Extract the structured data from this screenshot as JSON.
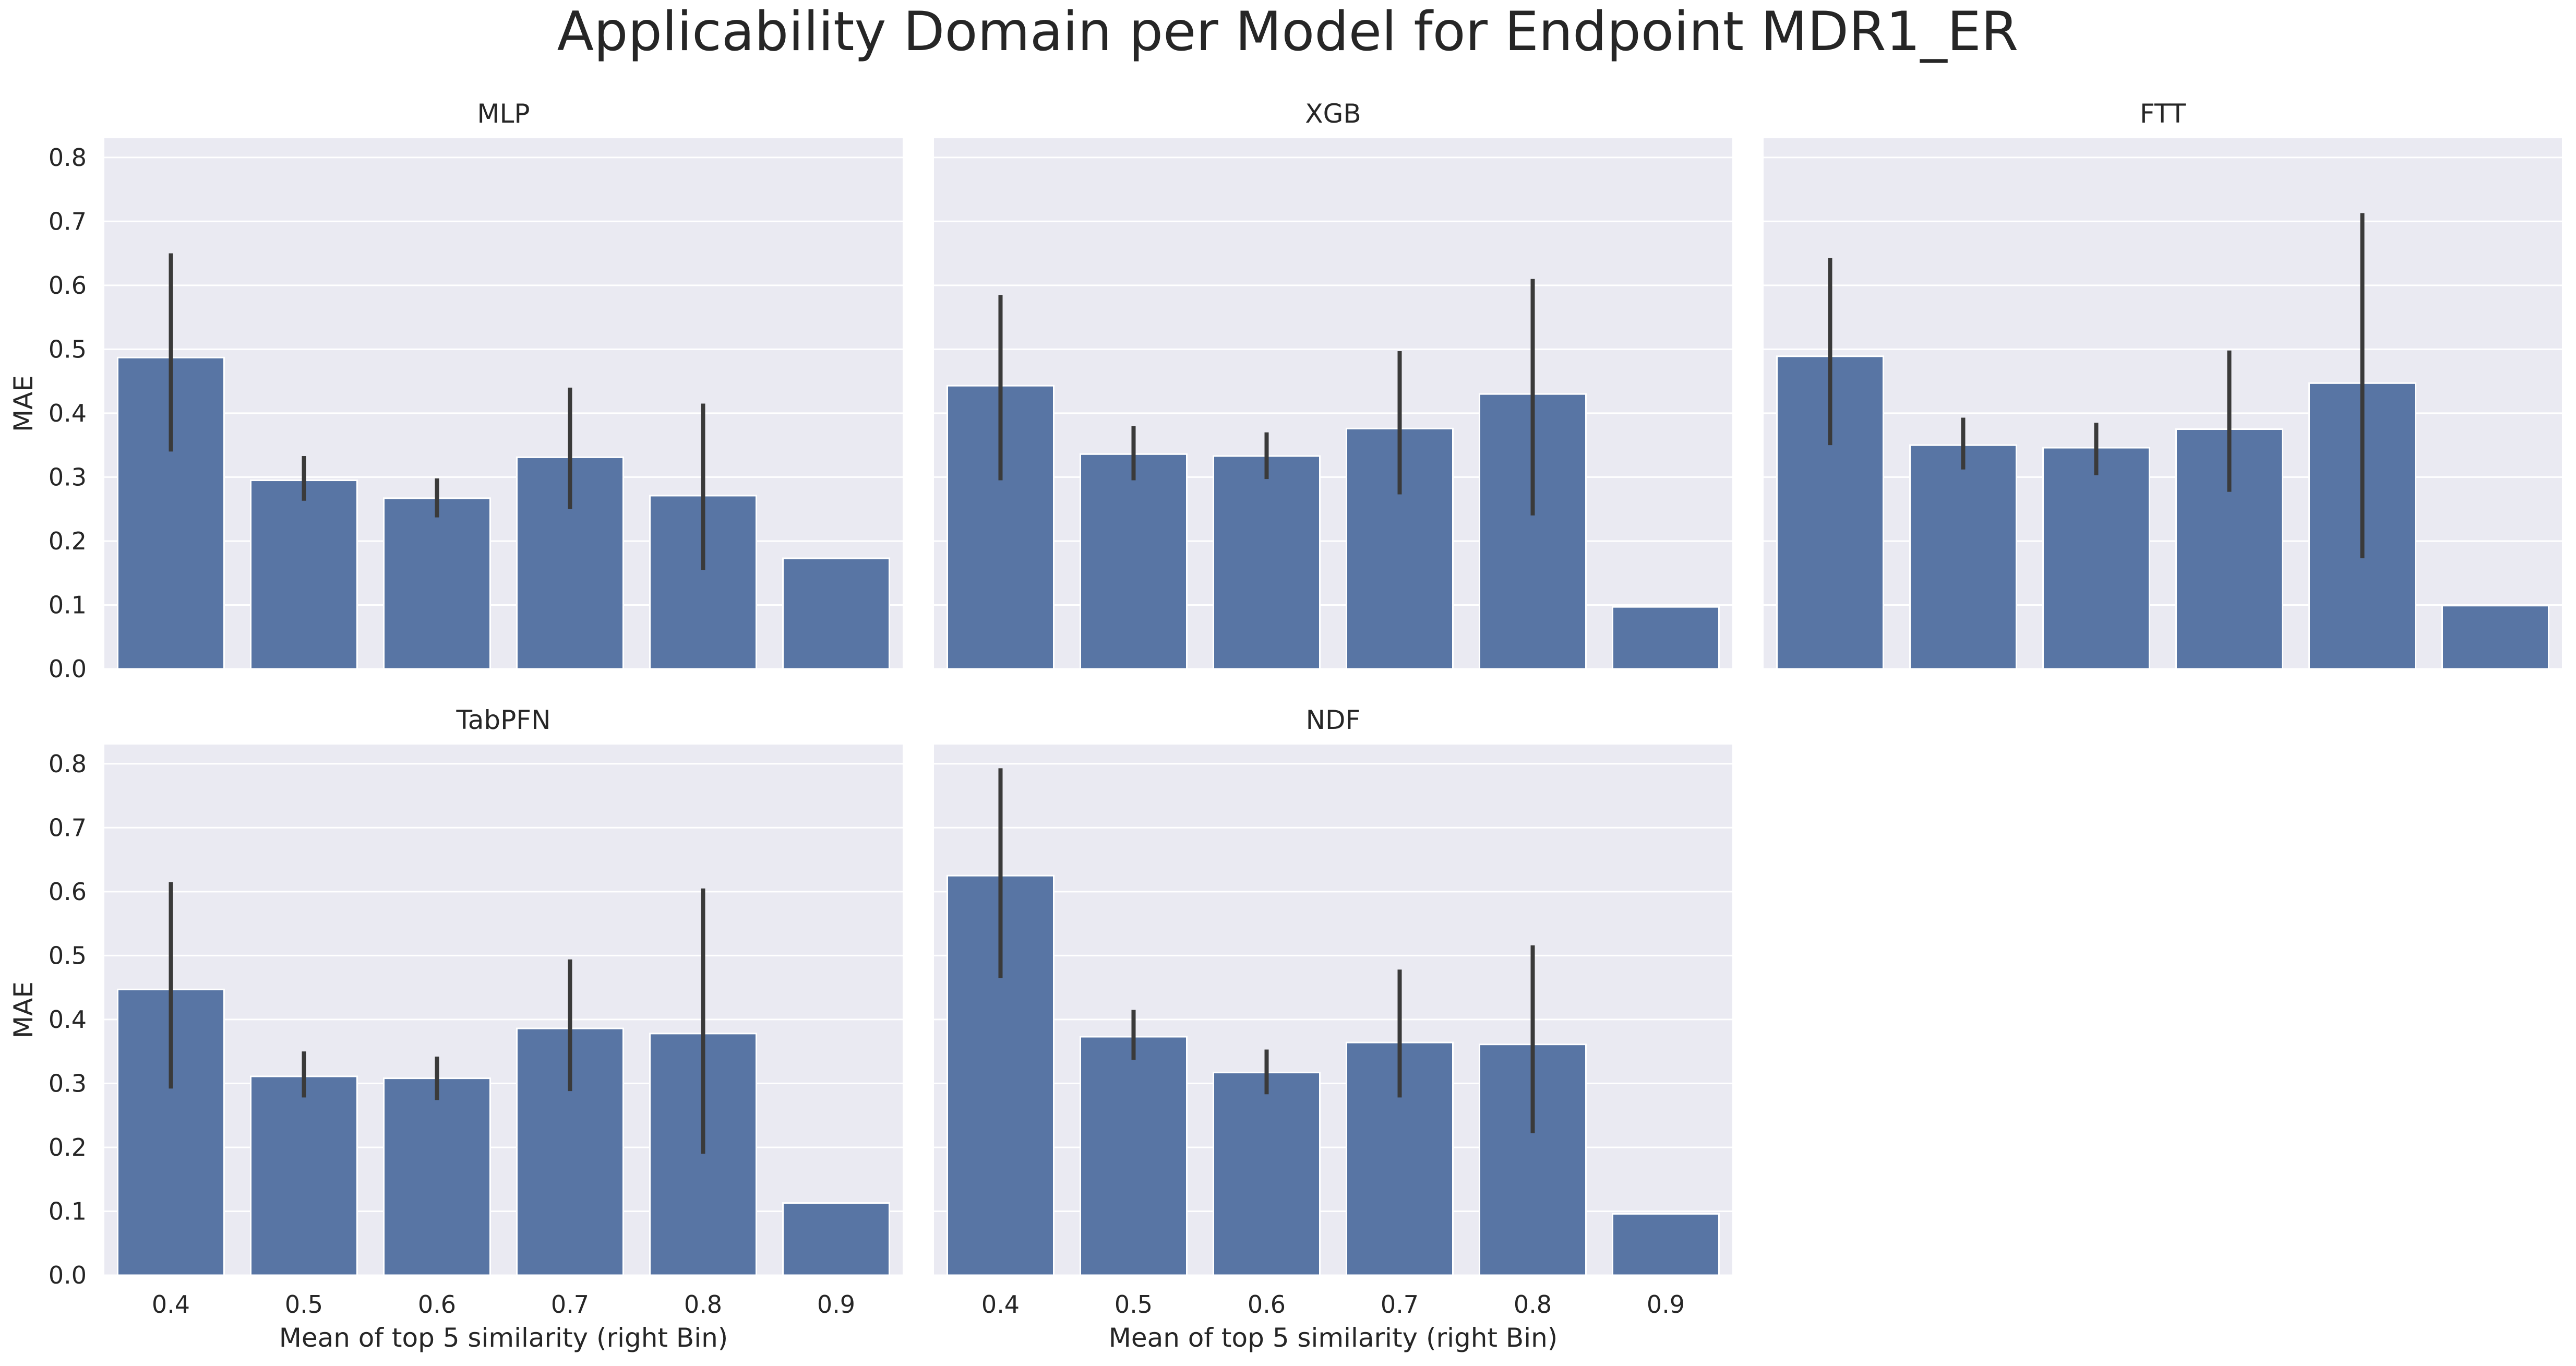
{
  "title": "Applicability Domain per Model for Endpoint MDR1_ER",
  "colors": {
    "bar": "#5875a4",
    "panel_bg": "#eaeaf2",
    "grid": "#ffffff",
    "error_bar": "#3a3a3a",
    "text": "#262626"
  },
  "chart_data": [
    {
      "type": "bar",
      "title": "MLP",
      "categories": [
        "0.4",
        "0.5",
        "0.6",
        "0.7",
        "0.8",
        "0.9"
      ],
      "values": [
        0.487,
        0.295,
        0.267,
        0.331,
        0.271,
        0.173
      ],
      "error_low": [
        0.34,
        0.263,
        0.237,
        0.25,
        0.155,
        0.173
      ],
      "error_high": [
        0.65,
        0.333,
        0.298,
        0.44,
        0.415,
        0.173
      ],
      "xlabel": "",
      "ylabel": "MAE",
      "ylim": [
        0,
        0.83
      ],
      "yticks": [
        "0.0",
        "0.1",
        "0.2",
        "0.3",
        "0.4",
        "0.5",
        "0.6",
        "0.7",
        "0.8"
      ],
      "grid": true
    },
    {
      "type": "bar",
      "title": "XGB",
      "categories": [
        "0.4",
        "0.5",
        "0.6",
        "0.7",
        "0.8",
        "0.9"
      ],
      "values": [
        0.443,
        0.336,
        0.333,
        0.376,
        0.43,
        0.097
      ],
      "error_low": [
        0.295,
        0.295,
        0.297,
        0.273,
        0.24,
        0.097
      ],
      "error_high": [
        0.585,
        0.38,
        0.37,
        0.497,
        0.61,
        0.097
      ],
      "xlabel": "",
      "ylabel": "",
      "ylim": [
        0,
        0.83
      ],
      "yticks": [],
      "grid": true
    },
    {
      "type": "bar",
      "title": "FTT",
      "categories": [
        "0.4",
        "0.5",
        "0.6",
        "0.7",
        "0.8",
        "0.9"
      ],
      "values": [
        0.489,
        0.35,
        0.346,
        0.375,
        0.447,
        0.099
      ],
      "error_low": [
        0.35,
        0.312,
        0.303,
        0.277,
        0.173,
        0.099
      ],
      "error_high": [
        0.643,
        0.393,
        0.385,
        0.498,
        0.713,
        0.099
      ],
      "xlabel": "",
      "ylabel": "",
      "ylim": [
        0,
        0.83
      ],
      "yticks": [],
      "grid": true
    },
    {
      "type": "bar",
      "title": "TabPFN",
      "categories": [
        "0.4",
        "0.5",
        "0.6",
        "0.7",
        "0.8",
        "0.9"
      ],
      "values": [
        0.447,
        0.311,
        0.308,
        0.386,
        0.378,
        0.113
      ],
      "error_low": [
        0.292,
        0.278,
        0.274,
        0.288,
        0.19,
        0.113
      ],
      "error_high": [
        0.615,
        0.35,
        0.342,
        0.494,
        0.605,
        0.113
      ],
      "xlabel": "Mean of top 5 similarity (right Bin)",
      "ylabel": "MAE",
      "ylim": [
        0,
        0.83
      ],
      "yticks": [
        "0.0",
        "0.1",
        "0.2",
        "0.3",
        "0.4",
        "0.5",
        "0.6",
        "0.7",
        "0.8"
      ],
      "xticks": [
        "0.4",
        "0.5",
        "0.6",
        "0.7",
        "0.8",
        "0.9"
      ],
      "grid": true
    },
    {
      "type": "bar",
      "title": "NDF",
      "categories": [
        "0.4",
        "0.5",
        "0.6",
        "0.7",
        "0.8",
        "0.9"
      ],
      "values": [
        0.625,
        0.373,
        0.317,
        0.364,
        0.361,
        0.096
      ],
      "error_low": [
        0.465,
        0.337,
        0.283,
        0.278,
        0.222,
        0.096
      ],
      "error_high": [
        0.793,
        0.415,
        0.353,
        0.478,
        0.516,
        0.096
      ],
      "xlabel": "Mean of top 5 similarity (right Bin)",
      "ylabel": "",
      "ylim": [
        0,
        0.83
      ],
      "yticks": [],
      "xticks": [
        "0.4",
        "0.5",
        "0.6",
        "0.7",
        "0.8",
        "0.9"
      ],
      "grid": true
    }
  ]
}
